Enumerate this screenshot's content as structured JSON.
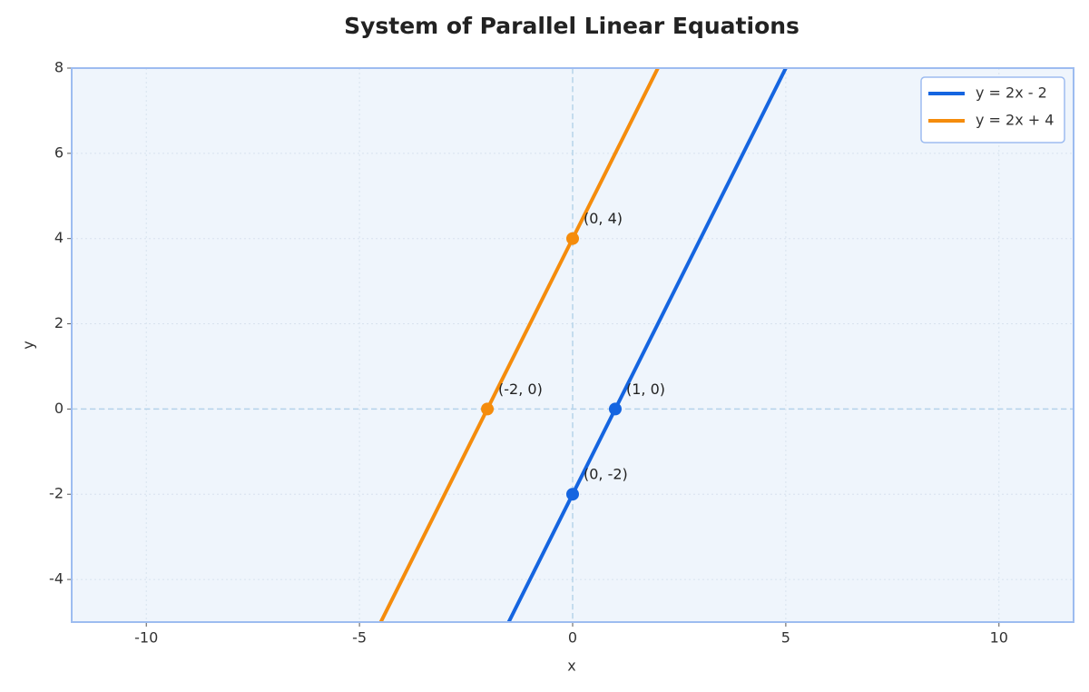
{
  "chart_data": {
    "type": "line",
    "title": "System of Parallel Linear Equations",
    "x_label": "x",
    "y_label": "y",
    "xlim": [
      -11.75,
      11.75
    ],
    "ylim": [
      -5,
      8
    ],
    "xticks": [
      -10,
      -5,
      0,
      5,
      10
    ],
    "yticks": [
      -4,
      -2,
      0,
      2,
      4,
      6,
      8
    ],
    "grid": true,
    "legend": "upper right",
    "hlines": [
      0
    ],
    "vlines": [
      0
    ],
    "series": [
      {
        "name": "y = 2x - 2",
        "color": "#1565e0",
        "x": [
          -1.5,
          5
        ],
        "values": [
          -5,
          8
        ],
        "points": {
          "x": [
            1,
            0
          ],
          "y": [
            0,
            -2
          ],
          "labels": [
            "(1, 0)",
            "(0, -2)"
          ]
        }
      },
      {
        "name": "y = 2x + 4",
        "color": "#f58c0c",
        "x": [
          -4.5,
          2
        ],
        "values": [
          -5,
          8
        ],
        "points": {
          "x": [
            -2,
            0
          ],
          "y": [
            0,
            4
          ],
          "labels": [
            "(-2, 0)",
            "(0, 4)"
          ]
        }
      }
    ]
  }
}
